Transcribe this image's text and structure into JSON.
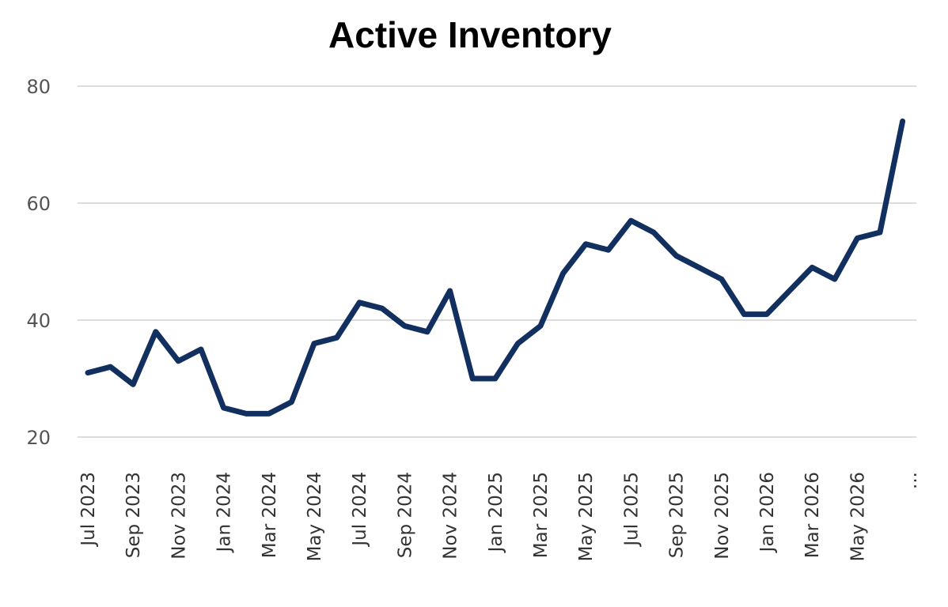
{
  "chart_data": {
    "type": "line",
    "title": "Active Inventory",
    "xlabel": "",
    "ylabel": "",
    "ylim": [
      20,
      80
    ],
    "yticks": [
      20,
      40,
      60,
      80
    ],
    "grid": true,
    "x": [
      "Jul 2023",
      "Aug 2023",
      "Sep 2023",
      "Oct 2023",
      "Nov 2023",
      "Dec 2023",
      "Jan 2024",
      "Feb 2024",
      "Mar 2024",
      "Apr 2024",
      "May 2024",
      "Jun 2024",
      "Jul 2024",
      "Aug 2024",
      "Sep 2024",
      "Oct 2024",
      "Nov 2024",
      "Dec 2024",
      "Jan 2025",
      "Feb 2025",
      "Mar 2025",
      "Apr 2025",
      "May 2025",
      "Jun 2025",
      "Jul 2025",
      "Aug 2025",
      "Sep 2025",
      "Oct 2025",
      "Nov 2025",
      "Dec 2025",
      "Jan 2026",
      "Feb 2026",
      "Mar 2026",
      "Apr 2026",
      "May 2026",
      "Jun 2026",
      "Jul 2026"
    ],
    "x_tick_labels": [
      "Jul 2023",
      "Sep 2023",
      "Nov 2023",
      "Jan 2024",
      "Mar 2024",
      "May 2024",
      "Jul 2024",
      "Sep 2024",
      "Nov 2024",
      "Jan 2025",
      "Mar 2025",
      "May 2025",
      "Jul 2025",
      "Sep 2025",
      "Nov 2025",
      "Jan 2026",
      "Mar 2026",
      "May 2026",
      "..."
    ],
    "series": [
      {
        "values": [
          31,
          32,
          29,
          38,
          33,
          35,
          25,
          24,
          24,
          26,
          36,
          37,
          43,
          42,
          39,
          38,
          45,
          30,
          30,
          36,
          39,
          48,
          53,
          52,
          57,
          55,
          51,
          49,
          47,
          41,
          41,
          45,
          49,
          47,
          54,
          55,
          74
        ],
        "color": "#12305f"
      }
    ]
  }
}
